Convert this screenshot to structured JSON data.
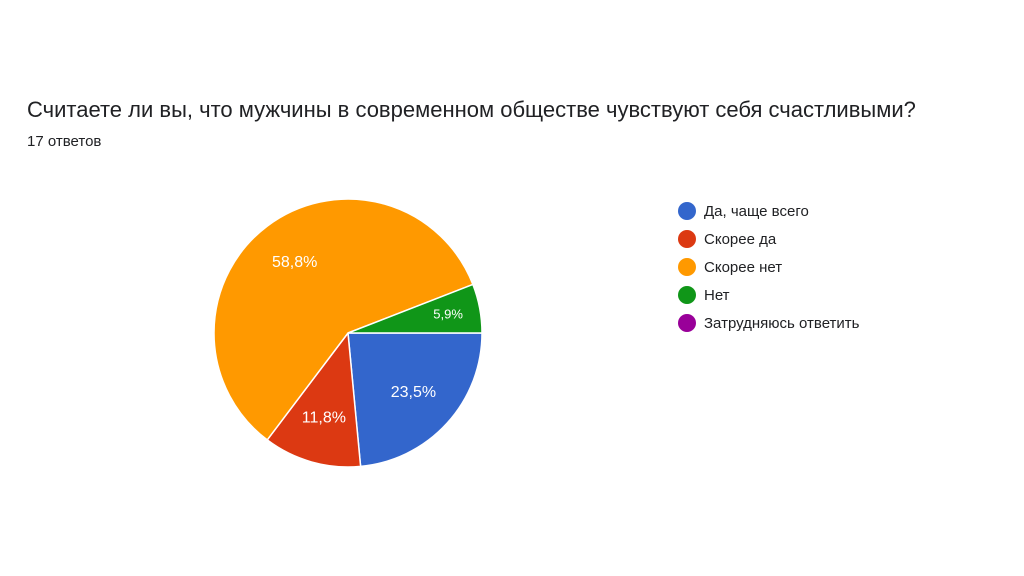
{
  "question": "Считаете ли вы, что мужчины в современном обществе чувствуют себя счастливыми?",
  "response_count": "17 ответов",
  "chart_data": {
    "type": "pie",
    "title": "Считаете ли вы, что мужчины в современном обществе чувствуют себя счастливыми?",
    "subtitle": "17 ответов",
    "legend_position": "right",
    "slices": [
      {
        "label": "Да, чаще всего",
        "value": 23.5,
        "display": "23,5%",
        "color": "#3366cc"
      },
      {
        "label": "Скорее да",
        "value": 11.8,
        "display": "11,8%",
        "color": "#dc3912"
      },
      {
        "label": "Скорее нет",
        "value": 58.8,
        "display": "58,8%",
        "color": "#ff9900"
      },
      {
        "label": "Нет",
        "value": 5.9,
        "display": "5,9%",
        "color": "#109618"
      },
      {
        "label": "Затрудняюсь ответить",
        "value": 0,
        "display": "",
        "color": "#990099"
      }
    ]
  }
}
